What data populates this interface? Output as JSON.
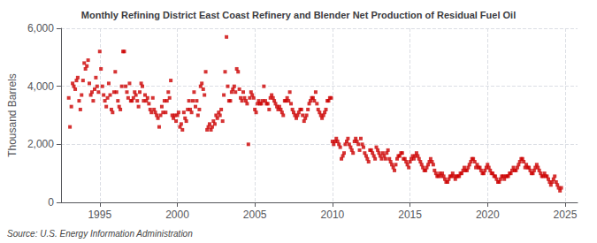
{
  "chart_data": {
    "type": "scatter",
    "title": "Monthly Refining District East Coast Refinery and Blender Net Production of Residual Fuel Oil",
    "ylabel": "Thousand Barrels",
    "annotation": "Source: U.S. Energy Information Administration",
    "color": "#CC0000",
    "marker": "square",
    "grid": true,
    "xlim": [
      1992.5,
      2025.8
    ],
    "xticks": [
      1995,
      2000,
      2005,
      2010,
      2015,
      2020,
      2025
    ],
    "ylim": [
      0,
      6000
    ],
    "yticks": [
      0,
      {
        "value": 2000,
        "label": "2,000"
      },
      {
        "value": 4000,
        "label": "4,000"
      },
      {
        "value": 6000,
        "label": "6,000"
      }
    ],
    "x": [
      1993.0,
      1993.08,
      1993.17,
      1993.25,
      1993.33,
      1993.42,
      1993.5,
      1993.58,
      1993.67,
      1993.75,
      1993.83,
      1993.92,
      1994.0,
      1994.08,
      1994.17,
      1994.25,
      1994.33,
      1994.42,
      1994.5,
      1994.58,
      1994.67,
      1994.75,
      1994.83,
      1994.92,
      1995.0,
      1995.08,
      1995.17,
      1995.25,
      1995.33,
      1995.42,
      1995.5,
      1995.58,
      1995.67,
      1995.75,
      1995.83,
      1995.92,
      1996.0,
      1996.08,
      1996.17,
      1996.25,
      1996.33,
      1996.42,
      1996.5,
      1996.58,
      1996.67,
      1996.75,
      1996.83,
      1996.92,
      1997.0,
      1997.08,
      1997.17,
      1997.25,
      1997.33,
      1997.42,
      1997.5,
      1997.58,
      1997.67,
      1997.75,
      1997.83,
      1997.92,
      1998.0,
      1998.08,
      1998.17,
      1998.25,
      1998.33,
      1998.42,
      1998.5,
      1998.58,
      1998.67,
      1998.75,
      1998.83,
      1998.92,
      1999.0,
      1999.08,
      1999.17,
      1999.25,
      1999.33,
      1999.42,
      1999.5,
      1999.58,
      1999.67,
      1999.75,
      1999.83,
      1999.92,
      2000.0,
      2000.08,
      2000.17,
      2000.25,
      2000.33,
      2000.42,
      2000.5,
      2000.58,
      2000.67,
      2000.75,
      2000.83,
      2000.92,
      2001.0,
      2001.08,
      2001.17,
      2001.25,
      2001.33,
      2001.42,
      2001.5,
      2001.58,
      2001.67,
      2001.75,
      2001.83,
      2001.92,
      2002.0,
      2002.08,
      2002.17,
      2002.25,
      2002.33,
      2002.42,
      2002.5,
      2002.58,
      2002.67,
      2002.75,
      2002.83,
      2002.92,
      2003.0,
      2003.08,
      2003.17,
      2003.25,
      2003.33,
      2003.42,
      2003.5,
      2003.58,
      2003.67,
      2003.75,
      2003.83,
      2003.92,
      2004.0,
      2004.08,
      2004.17,
      2004.25,
      2004.33,
      2004.42,
      2004.5,
      2004.58,
      2004.67,
      2004.75,
      2004.83,
      2004.92,
      2005.0,
      2005.08,
      2005.17,
      2005.25,
      2005.33,
      2005.42,
      2005.5,
      2005.58,
      2005.67,
      2005.75,
      2005.83,
      2005.92,
      2006.0,
      2006.08,
      2006.17,
      2006.25,
      2006.33,
      2006.42,
      2006.5,
      2006.58,
      2006.67,
      2006.75,
      2006.83,
      2006.92,
      2007.0,
      2007.08,
      2007.17,
      2007.25,
      2007.33,
      2007.42,
      2007.5,
      2007.58,
      2007.67,
      2007.75,
      2007.83,
      2007.92,
      2008.0,
      2008.08,
      2008.17,
      2008.25,
      2008.33,
      2008.42,
      2008.5,
      2008.58,
      2008.67,
      2008.75,
      2008.83,
      2008.92,
      2009.0,
      2009.08,
      2009.17,
      2009.25,
      2009.33,
      2009.42,
      2009.5,
      2009.58,
      2009.67,
      2009.75,
      2009.83,
      2009.92,
      2010.0,
      2010.08,
      2010.17,
      2010.25,
      2010.33,
      2010.42,
      2010.5,
      2010.58,
      2010.67,
      2010.75,
      2010.83,
      2010.92,
      2011.0,
      2011.08,
      2011.17,
      2011.25,
      2011.33,
      2011.42,
      2011.5,
      2011.58,
      2011.67,
      2011.75,
      2011.83,
      2011.92,
      2012.0,
      2012.08,
      2012.17,
      2012.25,
      2012.33,
      2012.42,
      2012.5,
      2012.58,
      2012.67,
      2012.75,
      2012.83,
      2012.92,
      2013.0,
      2013.08,
      2013.17,
      2013.25,
      2013.33,
      2013.42,
      2013.5,
      2013.58,
      2013.67,
      2013.75,
      2013.83,
      2013.92,
      2014.0,
      2014.08,
      2014.17,
      2014.25,
      2014.33,
      2014.42,
      2014.5,
      2014.58,
      2014.67,
      2014.75,
      2014.83,
      2014.92,
      2015.0,
      2015.08,
      2015.17,
      2015.25,
      2015.33,
      2015.42,
      2015.5,
      2015.58,
      2015.67,
      2015.75,
      2015.83,
      2015.92,
      2016.0,
      2016.08,
      2016.17,
      2016.25,
      2016.33,
      2016.42,
      2016.5,
      2016.58,
      2016.67,
      2016.75,
      2016.83,
      2016.92,
      2017.0,
      2017.08,
      2017.17,
      2017.25,
      2017.33,
      2017.42,
      2017.5,
      2017.58,
      2017.67,
      2017.75,
      2017.83,
      2017.92,
      2018.0,
      2018.08,
      2018.17,
      2018.25,
      2018.33,
      2018.42,
      2018.5,
      2018.58,
      2018.67,
      2018.75,
      2018.83,
      2018.92,
      2019.0,
      2019.08,
      2019.17,
      2019.25,
      2019.33,
      2019.42,
      2019.5,
      2019.58,
      2019.67,
      2019.75,
      2019.83,
      2019.92,
      2020.0,
      2020.08,
      2020.17,
      2020.25,
      2020.33,
      2020.42,
      2020.5,
      2020.58,
      2020.67,
      2020.75,
      2020.83,
      2020.92,
      2021.0,
      2021.08,
      2021.17,
      2021.25,
      2021.33,
      2021.42,
      2021.5,
      2021.58,
      2021.67,
      2021.75,
      2021.83,
      2021.92,
      2022.0,
      2022.08,
      2022.17,
      2022.25,
      2022.33,
      2022.42,
      2022.5,
      2022.58,
      2022.67,
      2022.75,
      2022.83,
      2022.92,
      2023.0,
      2023.08,
      2023.17,
      2023.25,
      2023.33,
      2023.42,
      2023.5,
      2023.58,
      2023.67,
      2023.75,
      2023.83,
      2023.92,
      2024.0,
      2024.08,
      2024.17,
      2024.25,
      2024.33,
      2024.42,
      2024.5,
      2024.58,
      2024.67,
      2024.75
    ],
    "values": [
      3600,
      2600,
      3300,
      4100,
      4000,
      3900,
      4200,
      4300,
      3500,
      3200,
      3700,
      4200,
      4800,
      4600,
      4700,
      4900,
      4100,
      3700,
      3800,
      3500,
      3900,
      4300,
      4000,
      3800,
      5200,
      4600,
      4000,
      3700,
      3500,
      3300,
      3600,
      4100,
      3700,
      3200,
      3100,
      3800,
      4500,
      3800,
      3500,
      3300,
      3200,
      4000,
      5200,
      5200,
      4000,
      3800,
      3600,
      4100,
      3500,
      3500,
      3600,
      3800,
      3700,
      3500,
      3300,
      3800,
      4100,
      4000,
      3500,
      3700,
      3500,
      3600,
      3400,
      3200,
      3100,
      3600,
      3200,
      3100,
      3000,
      2900,
      2600,
      3000,
      3300,
      3100,
      3500,
      3100,
      3500,
      3800,
      3600,
      4200,
      3000,
      2900,
      3000,
      2800,
      3000,
      3100,
      2600,
      2700,
      2500,
      3100,
      2900,
      2800,
      3200,
      3500,
      3200,
      3100,
      3500,
      3800,
      3300,
      3500,
      3000,
      3200,
      4000,
      4100,
      3900,
      3700,
      4500,
      2500,
      2600,
      2700,
      2500,
      2600,
      2800,
      2700,
      3000,
      2900,
      3100,
      3000,
      3200,
      2800,
      3700,
      4500,
      5700,
      4000,
      3500,
      3500,
      3800,
      3900,
      4000,
      3800,
      4600,
      4500,
      3900,
      3600,
      3500,
      3800,
      3600,
      3500,
      3400,
      2000,
      3600,
      3800,
      3700,
      3600,
      3200,
      3100,
      3400,
      3500,
      3400,
      3400,
      3500,
      4000,
      3500,
      3400,
      3400,
      3200,
      3600,
      3700,
      3600,
      3500,
      3400,
      3300,
      3200,
      3300,
      3200,
      3100,
      3000,
      3500,
      3500,
      3600,
      3500,
      3800,
      3400,
      3200,
      3100,
      3000,
      2900,
      3000,
      3100,
      3200,
      3200,
      3000,
      2800,
      2900,
      3000,
      3200,
      3400,
      3500,
      3600,
      3600,
      3500,
      3800,
      3400,
      3200,
      3100,
      3000,
      2900,
      3000,
      3100,
      3200,
      3500,
      3500,
      3600,
      3600,
      2100,
      2000,
      2100,
      2200,
      2100,
      2000,
      1900,
      1500,
      1600,
      1700,
      2000,
      2100,
      2200,
      2000,
      1900,
      1800,
      1700,
      2100,
      2200,
      2100,
      2000,
      1800,
      2200,
      2000,
      1900,
      1700,
      1600,
      1500,
      1400,
      1800,
      1800,
      1700,
      1600,
      1500,
      1900,
      1800,
      1700,
      1600,
      1500,
      1700,
      1600,
      1500,
      1700,
      1800,
      1500,
      1400,
      1300,
      1200,
      1100,
      1300,
      1500,
      1600,
      1600,
      1700,
      1700,
      1500,
      1500,
      1400,
      1300,
      1200,
      1400,
      1500,
      1600,
      1500,
      1600,
      1700,
      1600,
      1500,
      1400,
      1300,
      1200,
      1100,
      1100,
      1200,
      1300,
      1400,
      1500,
      1400,
      1300,
      1100,
      1000,
      900,
      900,
      1000,
      900,
      1000,
      900,
      800,
      700,
      700,
      800,
      900,
      900,
      1000,
      900,
      800,
      900,
      900,
      900,
      1000,
      1000,
      1100,
      1200,
      1100,
      1100,
      1200,
      1300,
      1400,
      1500,
      1500,
      1400,
      1200,
      1300,
      1200,
      1200,
      1100,
      1000,
      1000,
      1100,
      1200,
      1300,
      1200,
      1100,
      1000,
      1000,
      900,
      900,
      800,
      700,
      700,
      800,
      900,
      900,
      800,
      900,
      900,
      900,
      1000,
      1000,
      1100,
      1200,
      1100,
      1100,
      1200,
      1300,
      1400,
      1500,
      1500,
      1400,
      1200,
      1300,
      1200,
      1200,
      1100,
      1000,
      1000,
      1100,
      1200,
      1300,
      1200,
      1100,
      1000,
      900,
      900,
      1000,
      900,
      900,
      800,
      700,
      600,
      700,
      800,
      900,
      700,
      600,
      500,
      400,
      500
    ]
  }
}
